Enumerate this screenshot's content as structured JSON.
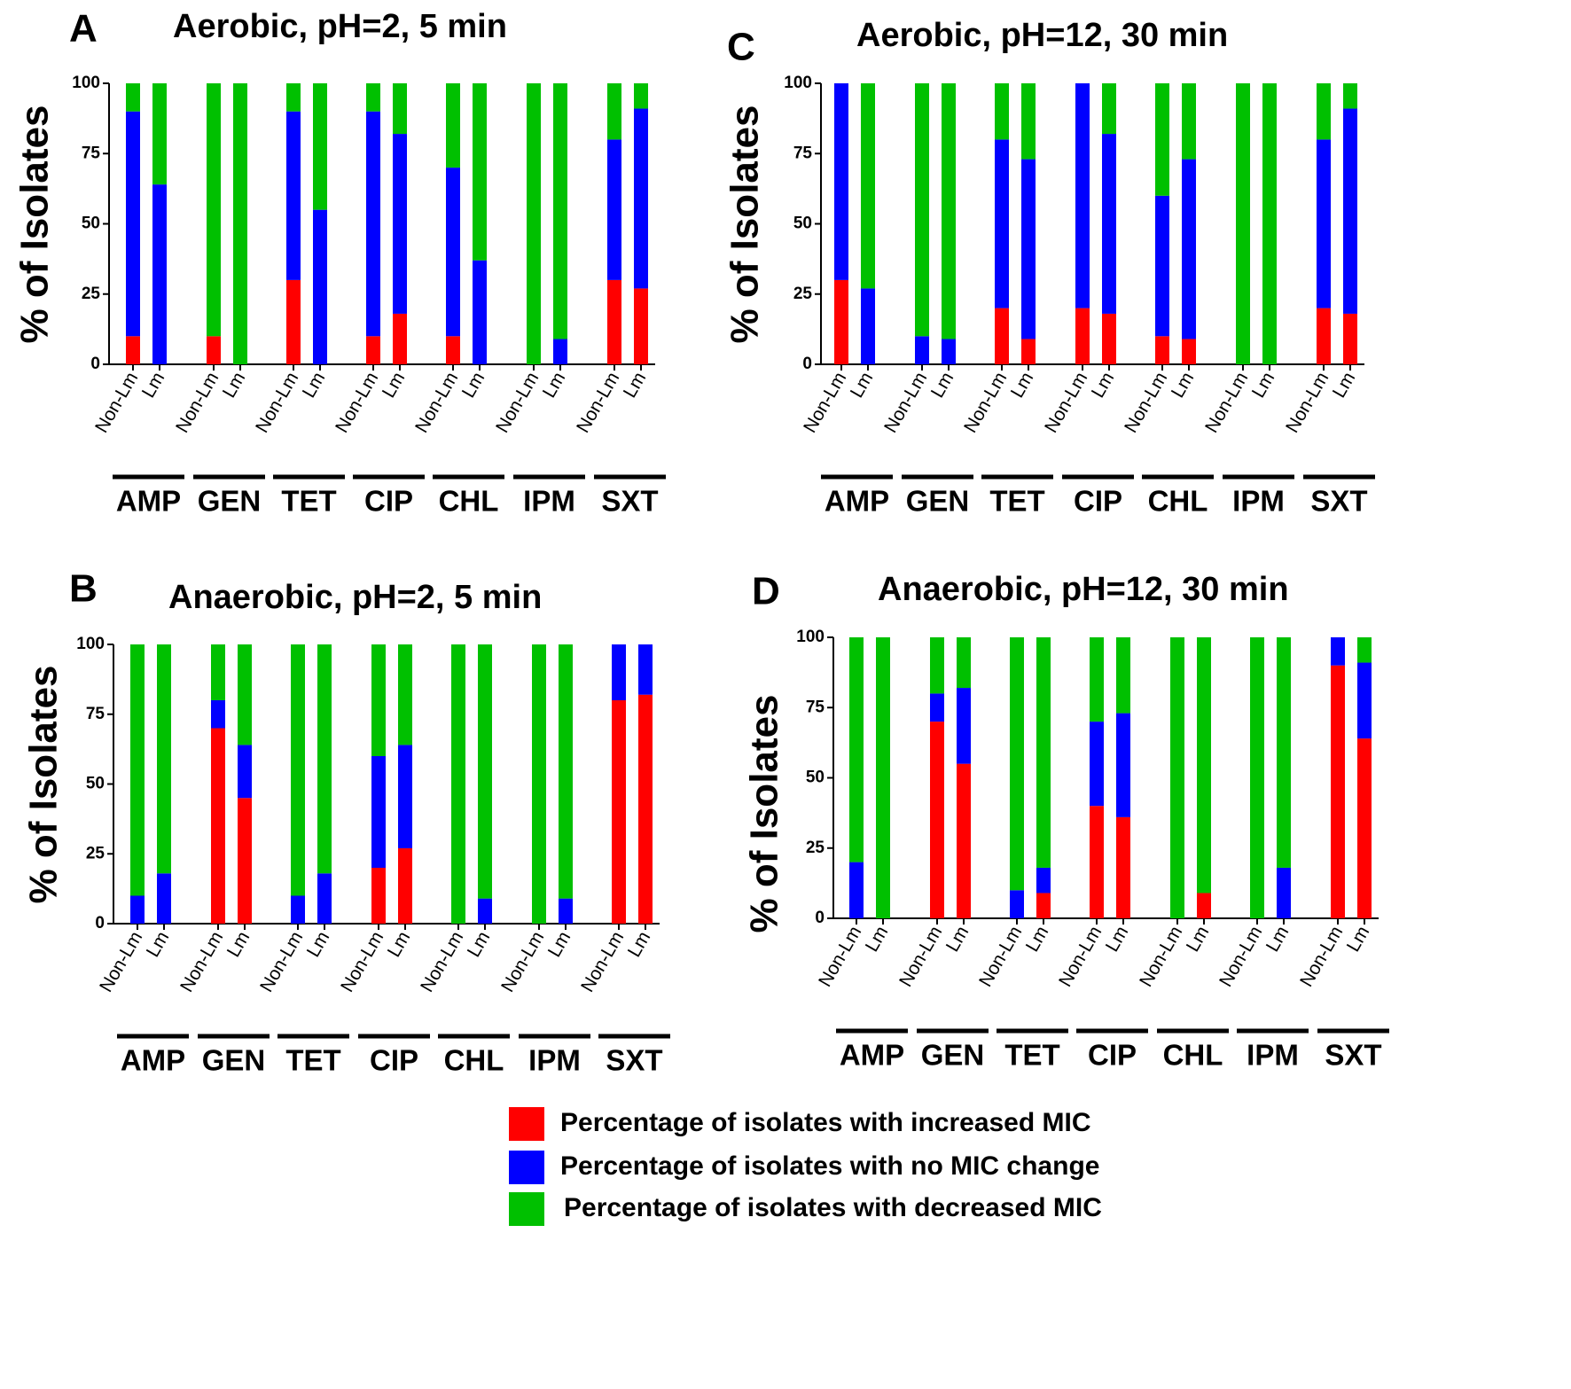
{
  "figure": {
    "legend": [
      {
        "label": "Percentage of isolates with increased MIC",
        "color": "#ff0000"
      },
      {
        "label": "Percentage of isolates with no MIC change",
        "color": "#0000ff"
      },
      {
        "label": "Percentage of isolates with decreased MIC",
        "color": "#00c000"
      }
    ]
  },
  "chart_data": [
    {
      "type": "bar",
      "stacked": true,
      "panel": "A",
      "title": "Aerobic, pH=2, 5 min",
      "ylabel": "% of Isolates",
      "ylim": [
        0,
        100
      ],
      "yticks": [
        "0",
        "25",
        "50",
        "75",
        "100"
      ],
      "bar_labels": [
        "Non-Lm",
        "Lm"
      ],
      "groups": [
        "AMP",
        "GEN",
        "TET",
        "CIP",
        "CHL",
        "IPM",
        "SXT"
      ],
      "series": [
        {
          "name": "Percentage of isolates with increased MIC",
          "values": [
            [
              10,
              0
            ],
            [
              10,
              0
            ],
            [
              30,
              0
            ],
            [
              10,
              18
            ],
            [
              10,
              0
            ],
            [
              0,
              0
            ],
            [
              30,
              27
            ]
          ]
        },
        {
          "name": "Percentage of isolates with no MIC change",
          "values": [
            [
              80,
              64
            ],
            [
              0,
              0
            ],
            [
              60,
              55
            ],
            [
              80,
              64
            ],
            [
              60,
              37
            ],
            [
              0,
              9
            ],
            [
              50,
              64
            ]
          ]
        },
        {
          "name": "Percentage of isolates with decreased MIC",
          "values": [
            [
              10,
              36
            ],
            [
              90,
              100
            ],
            [
              10,
              45
            ],
            [
              10,
              18
            ],
            [
              30,
              63
            ],
            [
              100,
              91
            ],
            [
              20,
              9
            ]
          ]
        }
      ]
    },
    {
      "type": "bar",
      "stacked": true,
      "panel": "B",
      "title": "Anaerobic, pH=2, 5 min",
      "ylabel": "% of Isolates",
      "ylim": [
        0,
        100
      ],
      "yticks": [
        "0",
        "25",
        "50",
        "75",
        "100"
      ],
      "bar_labels": [
        "Non-Lm",
        "Lm"
      ],
      "groups": [
        "AMP",
        "GEN",
        "TET",
        "CIP",
        "CHL",
        "IPM",
        "SXT"
      ],
      "series": [
        {
          "name": "Percentage of isolates with increased MIC",
          "values": [
            [
              0,
              0
            ],
            [
              70,
              45
            ],
            [
              0,
              0
            ],
            [
              20,
              27
            ],
            [
              0,
              0
            ],
            [
              0,
              0
            ],
            [
              80,
              82
            ]
          ]
        },
        {
          "name": "Percentage of isolates with no MIC change",
          "values": [
            [
              10,
              18
            ],
            [
              10,
              19
            ],
            [
              10,
              18
            ],
            [
              40,
              37
            ],
            [
              0,
              9
            ],
            [
              0,
              9
            ],
            [
              20,
              18
            ]
          ]
        },
        {
          "name": "Percentage of isolates with decreased MIC",
          "values": [
            [
              90,
              82
            ],
            [
              20,
              36
            ],
            [
              90,
              82
            ],
            [
              40,
              36
            ],
            [
              100,
              91
            ],
            [
              100,
              91
            ],
            [
              0,
              0
            ]
          ]
        }
      ]
    },
    {
      "type": "bar",
      "stacked": true,
      "panel": "C",
      "title": "Aerobic, pH=12, 30 min",
      "ylabel": "% of Isolates",
      "ylim": [
        0,
        100
      ],
      "yticks": [
        "0",
        "25",
        "50",
        "75",
        "100"
      ],
      "bar_labels": [
        "Non-Lm",
        "Lm"
      ],
      "groups": [
        "AMP",
        "GEN",
        "TET",
        "CIP",
        "CHL",
        "IPM",
        "SXT"
      ],
      "series": [
        {
          "name": "Percentage of isolates with increased MIC",
          "values": [
            [
              30,
              0
            ],
            [
              0,
              0
            ],
            [
              20,
              9
            ],
            [
              20,
              18
            ],
            [
              10,
              9
            ],
            [
              0,
              0
            ],
            [
              20,
              18
            ]
          ]
        },
        {
          "name": "Percentage of isolates with no MIC change",
          "values": [
            [
              70,
              27
            ],
            [
              10,
              9
            ],
            [
              60,
              64
            ],
            [
              80,
              64
            ],
            [
              50,
              64
            ],
            [
              0,
              0
            ],
            [
              60,
              73
            ]
          ]
        },
        {
          "name": "Percentage of isolates with decreased MIC",
          "values": [
            [
              0,
              73
            ],
            [
              90,
              91
            ],
            [
              20,
              27
            ],
            [
              0,
              18
            ],
            [
              40,
              27
            ],
            [
              100,
              100
            ],
            [
              20,
              9
            ]
          ]
        }
      ]
    },
    {
      "type": "bar",
      "stacked": true,
      "panel": "D",
      "title": "Anaerobic, pH=12, 30 min",
      "ylabel": "% of Isolates",
      "ylim": [
        0,
        100
      ],
      "yticks": [
        "0",
        "25",
        "50",
        "75",
        "100"
      ],
      "bar_labels": [
        "Non-Lm",
        "Lm"
      ],
      "groups": [
        "AMP",
        "GEN",
        "TET",
        "CIP",
        "CHL",
        "IPM",
        "SXT"
      ],
      "series": [
        {
          "name": "Percentage of isolates with increased MIC",
          "values": [
            [
              0,
              0
            ],
            [
              70,
              55
            ],
            [
              0,
              9
            ],
            [
              40,
              36
            ],
            [
              0,
              9
            ],
            [
              0,
              0
            ],
            [
              90,
              64
            ]
          ]
        },
        {
          "name": "Percentage of isolates with no MIC change",
          "values": [
            [
              20,
              0
            ],
            [
              10,
              27
            ],
            [
              10,
              9
            ],
            [
              30,
              37
            ],
            [
              0,
              0
            ],
            [
              0,
              18
            ],
            [
              10,
              27
            ]
          ]
        },
        {
          "name": "Percentage of isolates with decreased MIC",
          "values": [
            [
              80,
              100
            ],
            [
              20,
              18
            ],
            [
              90,
              82
            ],
            [
              30,
              27
            ],
            [
              100,
              91
            ],
            [
              100,
              82
            ],
            [
              0,
              9
            ]
          ]
        }
      ]
    }
  ]
}
